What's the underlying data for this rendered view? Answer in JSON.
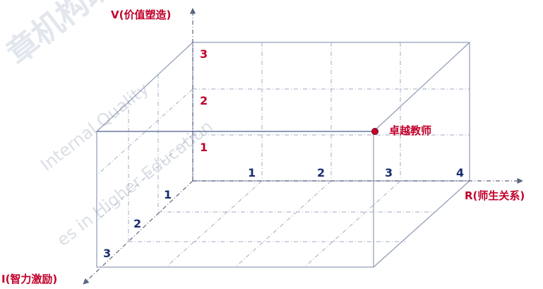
{
  "axes": {
    "v": {
      "label": "V(价值塑造)",
      "ticks": [
        "1",
        "2",
        "3"
      ]
    },
    "r": {
      "label": "R(师生关系)",
      "ticks": [
        "1",
        "2",
        "3",
        "4"
      ]
    },
    "i": {
      "label": "I(智力激励)",
      "ticks": [
        "1",
        "2",
        "3"
      ]
    }
  },
  "point": {
    "label": "卓越教师"
  },
  "watermark": {
    "cn": "章机构助",
    "line1": "Internal Quality",
    "line2": "es in Higher Education"
  },
  "colors": {
    "box_line": "#8e9ab5",
    "grid_line": "#a2abc0",
    "axis_line": "#5a6680",
    "v_tick": "#c0002a",
    "r_tick": "#1a2e6e",
    "accent_red": "#c0002a",
    "point_fill": "#c0002a"
  }
}
